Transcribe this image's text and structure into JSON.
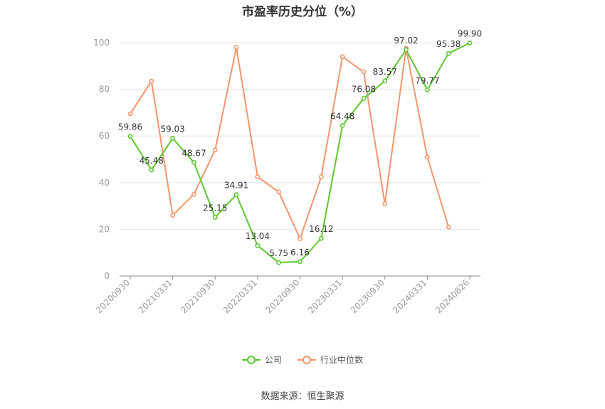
{
  "chart_data": {
    "type": "line",
    "title": "市盈率历史分位（%）",
    "xlabel": "",
    "ylabel": "",
    "ylim": [
      0,
      100
    ],
    "yticks": [
      0,
      20,
      40,
      60,
      80,
      100
    ],
    "x_tick_labels": [
      "20200930",
      "20210331",
      "20210930",
      "20220331",
      "20220930",
      "20230331",
      "20230930",
      "20240331",
      "20240826"
    ],
    "points_count": 17,
    "grid": true,
    "legend_position": "bottom",
    "series": [
      {
        "name": "公司",
        "color": "#5cc72e",
        "values": [
          59.86,
          45.48,
          59.03,
          48.67,
          25.15,
          34.91,
          13.04,
          5.75,
          6.16,
          16.12,
          64.48,
          76.08,
          83.57,
          97.02,
          79.77,
          95.38,
          99.9
        ],
        "labels": [
          "59.86",
          "45.48",
          "59.03",
          "48.67",
          "25.15",
          "34.91",
          "13.04",
          "5.75",
          "6.16",
          "16.12",
          "64.48",
          "76.08",
          "83.57",
          "97.02",
          "79.77",
          "95.38",
          "99.90"
        ]
      },
      {
        "name": "行业中位数",
        "color": "#f5956a",
        "values": [
          69.5,
          83.5,
          26.0,
          35.0,
          54.0,
          98.0,
          42.5,
          36.0,
          16.0,
          42.5,
          94.0,
          87.5,
          31.0,
          97.5,
          51.0,
          21.0,
          null
        ]
      }
    ]
  },
  "legend": {
    "company": "公司",
    "industry": "行业中位数"
  },
  "source": "数据来源：恒生聚源"
}
